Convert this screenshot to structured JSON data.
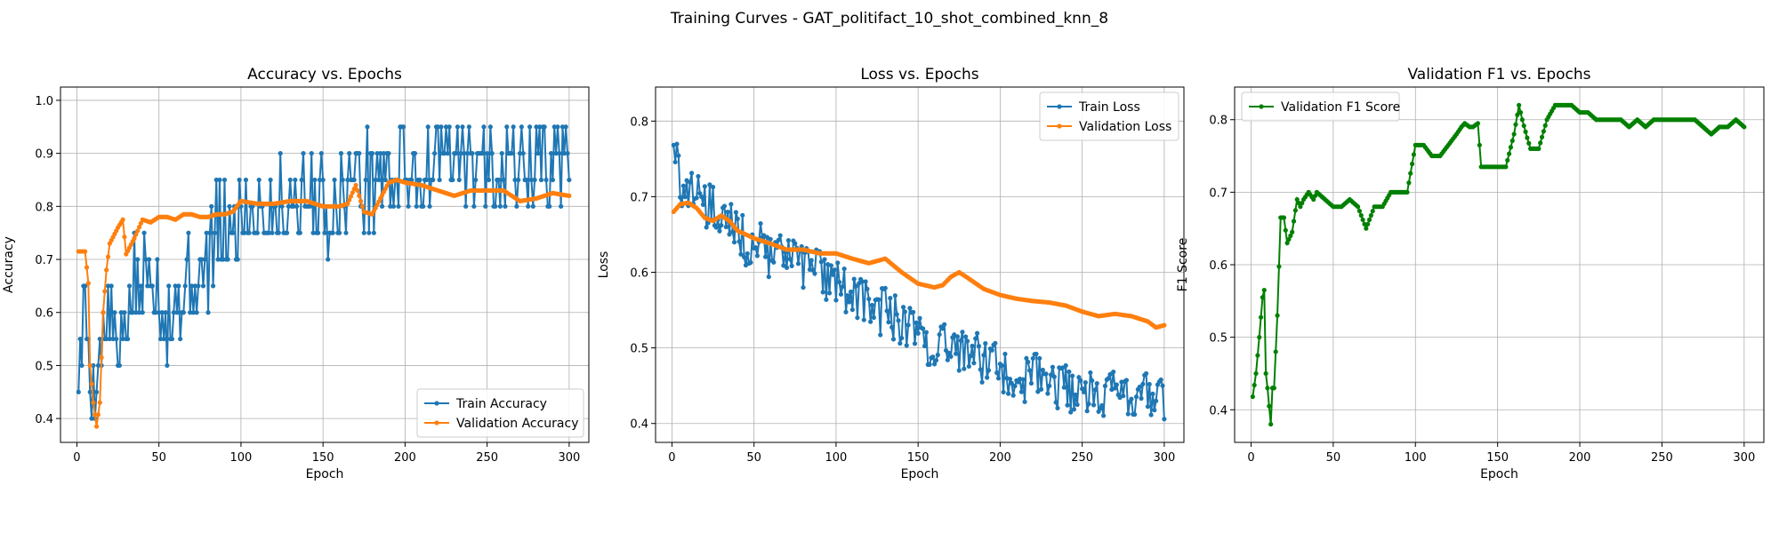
{
  "figure": {
    "suptitle": "Training Curves - GAT_politifact_10_shot_combined_knn_8"
  },
  "chart_data": [
    {
      "type": "line",
      "title": "Accuracy vs. Epochs",
      "xlabel": "Epoch",
      "ylabel": "Accuracy",
      "xlim": [
        -10,
        312
      ],
      "ylim": [
        0.355,
        1.025
      ],
      "xticks": [
        0,
        50,
        100,
        150,
        200,
        250,
        300
      ],
      "yticks": [
        0.4,
        0.5,
        0.6,
        0.7,
        0.8,
        0.9,
        1.0
      ],
      "ytick_labels": [
        "0.4",
        "0.5",
        "0.6",
        "0.7",
        "0.8",
        "0.9",
        "1.0"
      ],
      "grid": true,
      "legend": "lower-right",
      "series": [
        {
          "name": "Train Accuracy",
          "color": "#1f77b4",
          "noisy": true,
          "x": [
            1,
            5,
            10,
            15,
            20,
            25,
            30,
            35,
            40,
            45,
            50,
            55,
            60,
            65,
            70,
            75,
            80,
            85,
            90,
            95,
            100,
            105,
            110,
            115,
            120,
            125,
            130,
            135,
            140,
            145,
            150,
            155,
            160,
            165,
            170,
            175,
            180,
            185,
            190,
            195,
            200,
            205,
            210,
            215,
            220,
            225,
            230,
            235,
            240,
            245,
            250,
            255,
            260,
            265,
            270,
            275,
            280,
            285,
            290,
            295,
            300
          ],
          "y": [
            0.5,
            0.6,
            0.45,
            0.55,
            0.6,
            0.5,
            0.6,
            0.65,
            0.65,
            0.7,
            0.65,
            0.6,
            0.6,
            0.65,
            0.65,
            0.65,
            0.7,
            0.75,
            0.75,
            0.75,
            0.8,
            0.8,
            0.8,
            0.8,
            0.8,
            0.8,
            0.8,
            0.82,
            0.8,
            0.82,
            0.8,
            0.8,
            0.82,
            0.85,
            0.85,
            0.85,
            0.85,
            0.88,
            0.85,
            0.88,
            0.88,
            0.88,
            0.85,
            0.88,
            0.9,
            0.88,
            0.88,
            0.9,
            0.88,
            0.88,
            0.88,
            0.88,
            0.88,
            0.88,
            0.88,
            0.88,
            0.88,
            0.88,
            0.88,
            0.88,
            0.9
          ]
        },
        {
          "name": "Validation Accuracy",
          "color": "#ff7f0e",
          "noisy": false,
          "x": [
            1,
            5,
            7,
            8,
            10,
            12,
            14,
            16,
            18,
            20,
            25,
            28,
            30,
            35,
            40,
            45,
            50,
            55,
            60,
            65,
            70,
            75,
            80,
            85,
            90,
            95,
            100,
            110,
            120,
            130,
            140,
            150,
            155,
            160,
            165,
            170,
            175,
            180,
            185,
            190,
            195,
            200,
            210,
            220,
            230,
            240,
            250,
            260,
            270,
            280,
            290,
            300
          ],
          "y": [
            0.715,
            0.715,
            0.655,
            0.5,
            0.43,
            0.385,
            0.43,
            0.6,
            0.68,
            0.73,
            0.76,
            0.775,
            0.71,
            0.74,
            0.775,
            0.77,
            0.78,
            0.78,
            0.775,
            0.785,
            0.785,
            0.78,
            0.78,
            0.785,
            0.785,
            0.79,
            0.81,
            0.805,
            0.805,
            0.81,
            0.81,
            0.8,
            0.8,
            0.8,
            0.805,
            0.84,
            0.79,
            0.785,
            0.815,
            0.845,
            0.85,
            0.845,
            0.84,
            0.83,
            0.82,
            0.83,
            0.83,
            0.83,
            0.81,
            0.815,
            0.825,
            0.82
          ]
        }
      ]
    },
    {
      "type": "line",
      "title": "Loss vs. Epochs",
      "xlabel": "Epoch",
      "ylabel": "Loss",
      "xlim": [
        -10,
        312
      ],
      "ylim": [
        0.375,
        0.845
      ],
      "xticks": [
        0,
        50,
        100,
        150,
        200,
        250,
        300
      ],
      "yticks": [
        0.4,
        0.5,
        0.6,
        0.7,
        0.8
      ],
      "ytick_labels": [
        "0.4",
        "0.5",
        "0.6",
        "0.7",
        "0.8"
      ],
      "grid": true,
      "legend": "upper-right",
      "series": [
        {
          "name": "Train Loss",
          "color": "#1f77b4",
          "noisy": true,
          "x": [
            1,
            5,
            10,
            15,
            20,
            25,
            30,
            35,
            40,
            45,
            50,
            55,
            60,
            65,
            70,
            75,
            80,
            85,
            90,
            95,
            100,
            105,
            110,
            115,
            120,
            125,
            130,
            135,
            140,
            145,
            150,
            155,
            160,
            165,
            170,
            175,
            180,
            185,
            190,
            195,
            200,
            205,
            210,
            215,
            220,
            225,
            230,
            235,
            240,
            245,
            250,
            255,
            260,
            265,
            270,
            275,
            280,
            285,
            290,
            295,
            300
          ],
          "y": [
            0.76,
            0.72,
            0.7,
            0.7,
            0.69,
            0.68,
            0.66,
            0.66,
            0.65,
            0.64,
            0.64,
            0.63,
            0.62,
            0.63,
            0.62,
            0.61,
            0.61,
            0.6,
            0.6,
            0.59,
            0.58,
            0.58,
            0.57,
            0.57,
            0.56,
            0.55,
            0.55,
            0.54,
            0.53,
            0.53,
            0.52,
            0.51,
            0.5,
            0.51,
            0.5,
            0.5,
            0.49,
            0.49,
            0.48,
            0.48,
            0.47,
            0.47,
            0.47,
            0.46,
            0.46,
            0.46,
            0.45,
            0.45,
            0.45,
            0.44,
            0.45,
            0.44,
            0.44,
            0.44,
            0.44,
            0.44,
            0.44,
            0.43,
            0.44,
            0.43,
            0.43
          ]
        },
        {
          "name": "Validation Loss",
          "color": "#ff7f0e",
          "noisy": false,
          "x": [
            1,
            5,
            10,
            15,
            20,
            25,
            30,
            35,
            40,
            50,
            60,
            70,
            80,
            90,
            100,
            110,
            120,
            130,
            140,
            150,
            160,
            165,
            170,
            175,
            180,
            190,
            200,
            210,
            220,
            230,
            240,
            250,
            260,
            270,
            280,
            290,
            295,
            300
          ],
          "y": [
            0.68,
            0.69,
            0.692,
            0.685,
            0.672,
            0.668,
            0.675,
            0.668,
            0.655,
            0.645,
            0.638,
            0.63,
            0.63,
            0.625,
            0.625,
            0.618,
            0.612,
            0.618,
            0.6,
            0.585,
            0.58,
            0.583,
            0.594,
            0.6,
            0.593,
            0.578,
            0.57,
            0.565,
            0.562,
            0.56,
            0.556,
            0.548,
            0.542,
            0.545,
            0.542,
            0.535,
            0.527,
            0.53
          ]
        }
      ]
    },
    {
      "type": "line",
      "title": "Validation F1 vs. Epochs",
      "xlabel": "Epoch",
      "ylabel": "F1 Score",
      "xlim": [
        -10,
        312
      ],
      "ylim": [
        0.355,
        0.845
      ],
      "xticks": [
        0,
        50,
        100,
        150,
        200,
        250,
        300
      ],
      "yticks": [
        0.4,
        0.5,
        0.6,
        0.7,
        0.8
      ],
      "ytick_labels": [
        "0.4",
        "0.5",
        "0.6",
        "0.7",
        "0.8"
      ],
      "grid": true,
      "legend": "upper-left",
      "series": [
        {
          "name": "Validation F1 Score",
          "color": "#008000",
          "noisy": false,
          "x": [
            1,
            3,
            5,
            7,
            8,
            9,
            10,
            12,
            13,
            14,
            16,
            18,
            20,
            22,
            25,
            28,
            30,
            32,
            35,
            38,
            40,
            45,
            50,
            55,
            60,
            65,
            70,
            75,
            80,
            85,
            90,
            95,
            100,
            105,
            110,
            115,
            120,
            125,
            128,
            130,
            133,
            135,
            138,
            140,
            145,
            150,
            155,
            160,
            163,
            165,
            168,
            170,
            175,
            180,
            185,
            190,
            195,
            200,
            205,
            210,
            215,
            220,
            225,
            230,
            235,
            240,
            245,
            250,
            255,
            260,
            265,
            270,
            275,
            280,
            285,
            290,
            295,
            300
          ],
          "y": [
            0.418,
            0.45,
            0.5,
            0.555,
            0.565,
            0.45,
            0.43,
            0.38,
            0.43,
            0.43,
            0.53,
            0.665,
            0.665,
            0.63,
            0.645,
            0.69,
            0.68,
            0.69,
            0.7,
            0.69,
            0.7,
            0.69,
            0.68,
            0.68,
            0.69,
            0.68,
            0.65,
            0.68,
            0.68,
            0.7,
            0.7,
            0.7,
            0.765,
            0.765,
            0.75,
            0.75,
            0.765,
            0.78,
            0.79,
            0.795,
            0.79,
            0.79,
            0.795,
            0.735,
            0.735,
            0.735,
            0.735,
            0.78,
            0.82,
            0.8,
            0.775,
            0.76,
            0.76,
            0.8,
            0.82,
            0.82,
            0.82,
            0.81,
            0.81,
            0.8,
            0.8,
            0.8,
            0.8,
            0.79,
            0.8,
            0.79,
            0.8,
            0.8,
            0.8,
            0.8,
            0.8,
            0.8,
            0.79,
            0.78,
            0.79,
            0.79,
            0.8,
            0.79
          ]
        }
      ]
    }
  ]
}
